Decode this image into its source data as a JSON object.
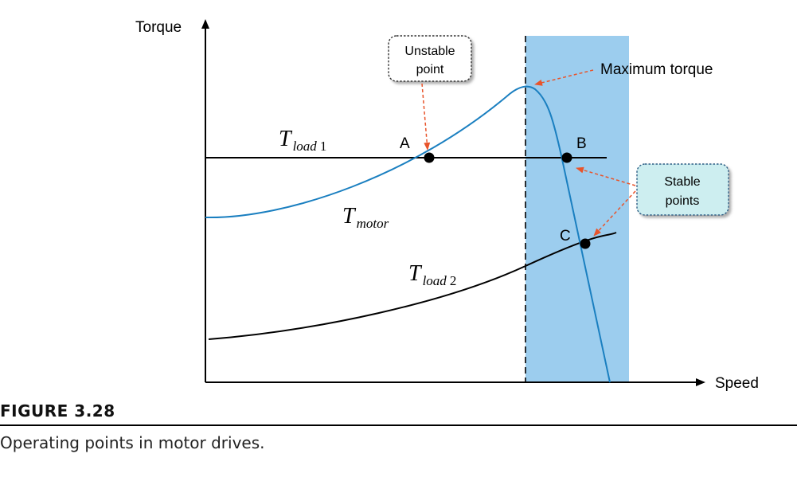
{
  "axes": {
    "y_label": "Torque",
    "x_label": "Speed"
  },
  "curves": {
    "tload1": {
      "symbol": "T",
      "subscript": "load",
      "index": "1"
    },
    "tload2": {
      "symbol": "T",
      "subscript": "load",
      "index": "2"
    },
    "tmotor": {
      "symbol": "T",
      "subscript": "motor"
    }
  },
  "points": {
    "a": "A",
    "b": "B",
    "c": "C"
  },
  "callouts": {
    "unstable": [
      "Unstable",
      "point"
    ],
    "stable": [
      "Stable",
      "points"
    ],
    "max_torque": "Maximum torque"
  },
  "colors": {
    "motor_curve": "#1a7fc0",
    "stable_region": "#9ccdee",
    "arrow": "#e8542b",
    "stable_box": "#cdeef0"
  },
  "figure": {
    "label": "FIGURE 3.28",
    "caption": "Operating points in motor drives."
  }
}
